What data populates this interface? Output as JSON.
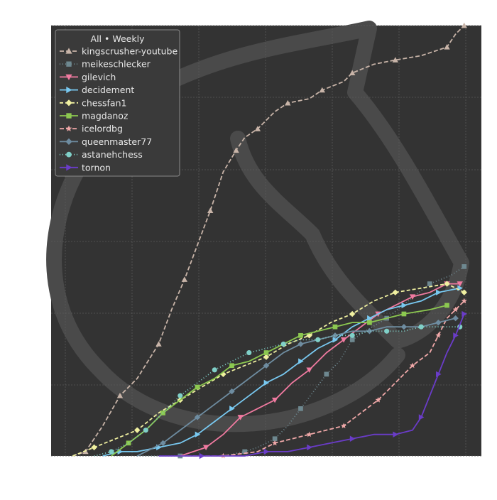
{
  "chart_data": {
    "type": "line",
    "title": "",
    "xlabel": "",
    "ylabel": "",
    "xlim": [
      0,
      100
    ],
    "ylim": [
      0,
      100
    ],
    "grid": true,
    "background": "#333333",
    "watermark": "knight-silhouette",
    "legend": {
      "placement": "top-left",
      "title": "All • Weekly"
    },
    "series": [
      {
        "name": "kingscrusher-youtube",
        "color": "#c8b4a8",
        "dash": "6,3",
        "marker": "triangle-up",
        "points": [
          [
            5,
            0
          ],
          [
            8,
            1
          ],
          [
            12,
            7
          ],
          [
            16,
            14
          ],
          [
            20,
            18
          ],
          [
            25,
            26
          ],
          [
            28,
            34
          ],
          [
            31,
            41
          ],
          [
            34,
            49
          ],
          [
            37,
            57
          ],
          [
            40,
            66
          ],
          [
            43,
            71
          ],
          [
            45,
            74
          ],
          [
            48,
            76
          ],
          [
            52,
            80
          ],
          [
            55,
            82
          ],
          [
            60,
            83
          ],
          [
            63,
            85
          ],
          [
            68,
            87
          ],
          [
            70,
            89
          ],
          [
            75,
            91
          ],
          [
            80,
            92
          ],
          [
            86,
            93
          ],
          [
            92,
            95
          ],
          [
            94,
            98
          ],
          [
            96,
            100
          ]
        ]
      },
      {
        "name": "meikeschlecker",
        "color": "#6e8890",
        "dash": "1,3",
        "marker": "square",
        "points": [
          [
            20,
            0
          ],
          [
            30,
            0
          ],
          [
            40,
            0
          ],
          [
            45,
            1
          ],
          [
            48,
            2
          ],
          [
            52,
            4
          ],
          [
            55,
            7
          ],
          [
            58,
            11
          ],
          [
            61,
            15
          ],
          [
            64,
            19
          ],
          [
            67,
            22
          ],
          [
            70,
            27
          ],
          [
            73,
            29
          ],
          [
            78,
            32
          ],
          [
            83,
            36
          ],
          [
            88,
            40
          ],
          [
            93,
            42
          ],
          [
            96,
            44
          ]
        ]
      },
      {
        "name": "gilevich",
        "color": "#f07aa0",
        "dash": "",
        "marker": "triangle-down",
        "points": [
          [
            30,
            0
          ],
          [
            36,
            2
          ],
          [
            40,
            5
          ],
          [
            44,
            9
          ],
          [
            48,
            11
          ],
          [
            52,
            13
          ],
          [
            56,
            17
          ],
          [
            60,
            20
          ],
          [
            64,
            24
          ],
          [
            68,
            27
          ],
          [
            72,
            30
          ],
          [
            76,
            33
          ],
          [
            80,
            35
          ],
          [
            84,
            37
          ],
          [
            88,
            38
          ],
          [
            92,
            40
          ],
          [
            95,
            40
          ]
        ]
      },
      {
        "name": "decidement",
        "color": "#78c8f0",
        "dash": "",
        "marker": "triangle-right",
        "points": [
          [
            12,
            0
          ],
          [
            16,
            1
          ],
          [
            20,
            1
          ],
          [
            25,
            2
          ],
          [
            30,
            3
          ],
          [
            34,
            5
          ],
          [
            38,
            8
          ],
          [
            42,
            11
          ],
          [
            46,
            14
          ],
          [
            50,
            17
          ],
          [
            54,
            19
          ],
          [
            58,
            22
          ],
          [
            62,
            25
          ],
          [
            66,
            27
          ],
          [
            70,
            30
          ],
          [
            74,
            32
          ],
          [
            78,
            34
          ],
          [
            82,
            35
          ],
          [
            86,
            36
          ],
          [
            90,
            38
          ],
          [
            95,
            39
          ]
        ]
      },
      {
        "name": "chessfan1",
        "color": "#f0f0a0",
        "dash": "5,3",
        "marker": "diamond",
        "points": [
          [
            5,
            0
          ],
          [
            10,
            2
          ],
          [
            15,
            4
          ],
          [
            20,
            6
          ],
          [
            25,
            10
          ],
          [
            30,
            13
          ],
          [
            35,
            16
          ],
          [
            40,
            19
          ],
          [
            45,
            21
          ],
          [
            50,
            23
          ],
          [
            55,
            26
          ],
          [
            60,
            28
          ],
          [
            65,
            31
          ],
          [
            70,
            33
          ],
          [
            75,
            36
          ],
          [
            80,
            38
          ],
          [
            86,
            39
          ],
          [
            92,
            40
          ],
          [
            96,
            38
          ]
        ]
      },
      {
        "name": "magdanoz",
        "color": "#8cc850",
        "dash": "",
        "marker": "square",
        "points": [
          [
            14,
            0
          ],
          [
            18,
            3
          ],
          [
            22,
            6
          ],
          [
            26,
            10
          ],
          [
            30,
            13
          ],
          [
            34,
            16
          ],
          [
            38,
            18
          ],
          [
            42,
            21
          ],
          [
            46,
            22
          ],
          [
            50,
            24
          ],
          [
            54,
            26
          ],
          [
            58,
            28
          ],
          [
            62,
            29
          ],
          [
            66,
            30
          ],
          [
            70,
            31
          ],
          [
            74,
            31
          ],
          [
            78,
            32
          ],
          [
            82,
            33
          ],
          [
            88,
            34
          ],
          [
            92,
            35
          ]
        ]
      },
      {
        "name": "icelordbg",
        "color": "#f0a8a8",
        "dash": "6,3",
        "marker": "star",
        "points": [
          [
            30,
            0
          ],
          [
            40,
            0
          ],
          [
            48,
            1
          ],
          [
            52,
            3
          ],
          [
            56,
            4
          ],
          [
            60,
            5
          ],
          [
            64,
            6
          ],
          [
            68,
            7
          ],
          [
            72,
            10
          ],
          [
            76,
            13
          ],
          [
            80,
            17
          ],
          [
            84,
            21
          ],
          [
            88,
            24
          ],
          [
            90,
            28
          ],
          [
            92,
            32
          ],
          [
            94,
            34
          ],
          [
            96,
            36
          ]
        ]
      },
      {
        "name": "queenmaster77",
        "color": "#6e8ca0",
        "dash": "",
        "marker": "diamond",
        "points": [
          [
            20,
            0
          ],
          [
            26,
            3
          ],
          [
            30,
            6
          ],
          [
            34,
            9
          ],
          [
            38,
            12
          ],
          [
            42,
            15
          ],
          [
            46,
            18
          ],
          [
            50,
            21
          ],
          [
            54,
            24
          ],
          [
            58,
            26
          ],
          [
            62,
            27
          ],
          [
            66,
            28
          ],
          [
            70,
            29
          ],
          [
            74,
            29
          ],
          [
            78,
            30
          ],
          [
            82,
            30
          ],
          [
            86,
            30
          ],
          [
            90,
            31
          ],
          [
            94,
            32
          ]
        ]
      },
      {
        "name": "astanehchess",
        "color": "#80d0c8",
        "dash": "1,3",
        "marker": "circle",
        "points": [
          [
            10,
            0
          ],
          [
            14,
            1
          ],
          [
            18,
            3
          ],
          [
            22,
            6
          ],
          [
            26,
            10
          ],
          [
            30,
            14
          ],
          [
            34,
            17
          ],
          [
            38,
            20
          ],
          [
            42,
            22
          ],
          [
            46,
            24
          ],
          [
            50,
            25
          ],
          [
            54,
            26
          ],
          [
            58,
            27
          ],
          [
            62,
            27
          ],
          [
            66,
            28
          ],
          [
            70,
            28
          ],
          [
            74,
            29
          ],
          [
            78,
            29
          ],
          [
            82,
            29
          ],
          [
            86,
            30
          ],
          [
            90,
            30
          ],
          [
            95,
            30
          ]
        ]
      },
      {
        "name": "tornon",
        "color": "#6a3cc8",
        "dash": "",
        "marker": "triangle-right",
        "points": [
          [
            25,
            0
          ],
          [
            35,
            0
          ],
          [
            45,
            0
          ],
          [
            50,
            1
          ],
          [
            55,
            1
          ],
          [
            60,
            2
          ],
          [
            65,
            3
          ],
          [
            70,
            4
          ],
          [
            75,
            5
          ],
          [
            80,
            5
          ],
          [
            84,
            6
          ],
          [
            86,
            9
          ],
          [
            88,
            14
          ],
          [
            90,
            19
          ],
          [
            92,
            24
          ],
          [
            94,
            28
          ],
          [
            96,
            33
          ]
        ]
      }
    ]
  }
}
